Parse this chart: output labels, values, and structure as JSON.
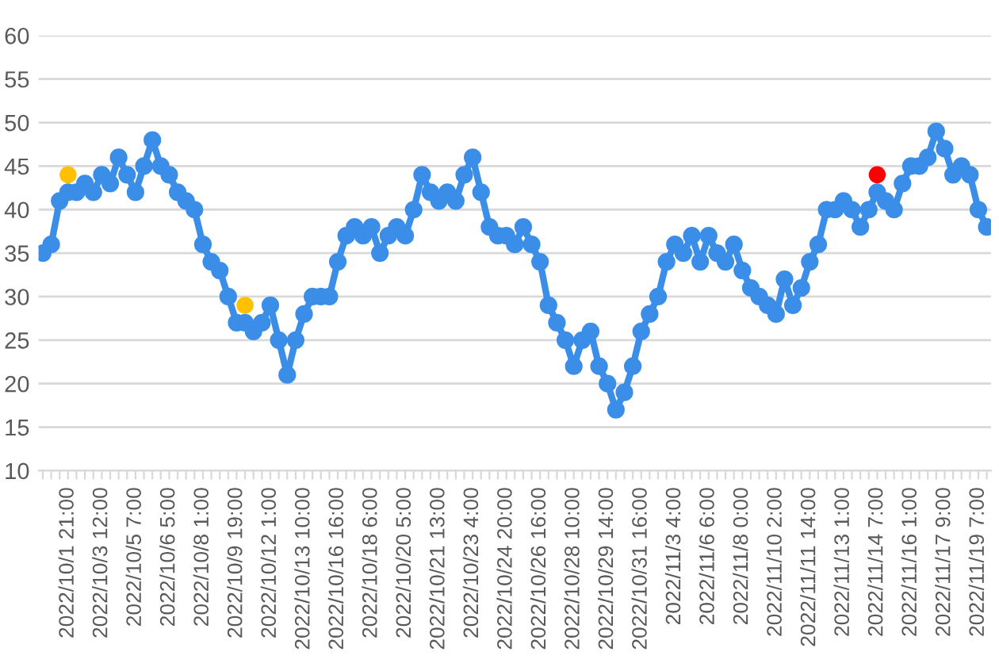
{
  "chart_data": {
    "type": "line",
    "categories": [
      null,
      null,
      null,
      "2022/10/1 21:00",
      null,
      null,
      null,
      "2022/10/3 12:00",
      null,
      null,
      null,
      "2022/10/5 7:00",
      null,
      null,
      null,
      "2022/10/6 5:00",
      null,
      null,
      null,
      "2022/10/8 1:00",
      null,
      null,
      null,
      "2022/10/9 19:00",
      null,
      null,
      null,
      "2022/10/12 1:00",
      null,
      null,
      null,
      "2022/10/13 10:00",
      null,
      null,
      null,
      "2022/10/16 16:00",
      null,
      null,
      null,
      "2022/10/18 6:00",
      null,
      null,
      null,
      "2022/10/20 5:00",
      null,
      null,
      null,
      "2022/10/21 13:00",
      null,
      null,
      null,
      "2022/10/23 4:00",
      null,
      null,
      null,
      "2022/10/24 20:00",
      null,
      null,
      null,
      "2022/10/26 16:00",
      null,
      null,
      null,
      "2022/10/28 10:00",
      null,
      null,
      null,
      "2022/10/29 14:00",
      null,
      null,
      null,
      "2022/10/31 16:00",
      null,
      null,
      null,
      "2022/11/3 4:00",
      null,
      null,
      null,
      "2022/11/6 6:00",
      null,
      null,
      null,
      "2022/11/8 0:00",
      null,
      null,
      null,
      "2022/11/10 2:00",
      null,
      null,
      null,
      "2022/11/11 14:00",
      null,
      null,
      null,
      "2022/11/13 1:00",
      null,
      null,
      null,
      "2022/11/14 7:00",
      null,
      null,
      null,
      "2022/11/16 1:00",
      null,
      null,
      null,
      "2022/11/17 9:00",
      null,
      null,
      null,
      "2022/11/19 7:00",
      null
    ],
    "series": [
      {
        "type": "line",
        "color": "#3b8ee8",
        "values": [
          35,
          36,
          41,
          42,
          42,
          43,
          42,
          44,
          43,
          46,
          44,
          42,
          45,
          48,
          45,
          44,
          42,
          41,
          40,
          36,
          34,
          33,
          30,
          27,
          27,
          26,
          27,
          29,
          25,
          21,
          25,
          28,
          30,
          30,
          30,
          34,
          37,
          38,
          37,
          38,
          35,
          37,
          38,
          37,
          40,
          44,
          42,
          41,
          42,
          41,
          44,
          46,
          42,
          38,
          37,
          37,
          36,
          38,
          36,
          34,
          29,
          27,
          25,
          22,
          25,
          26,
          22,
          20,
          17,
          19,
          22,
          26,
          28,
          30,
          34,
          36,
          35,
          37,
          34,
          37,
          35,
          34,
          36,
          33,
          31,
          30,
          29,
          28,
          32,
          29,
          31,
          34,
          36,
          40,
          40,
          41,
          40,
          38,
          40,
          42,
          41,
          40,
          43,
          45,
          45,
          46,
          49,
          47,
          44,
          45,
          44,
          40,
          38
        ]
      },
      {
        "type": "scatter",
        "colors": [
          null,
          null,
          null,
          "#ffc000",
          null,
          null,
          null,
          null,
          null,
          null,
          null,
          null,
          null,
          null,
          null,
          null,
          null,
          null,
          null,
          null,
          null,
          null,
          null,
          null,
          "#ffc000",
          null,
          null,
          null,
          null,
          null,
          null,
          null,
          null,
          null,
          null,
          null,
          null,
          null,
          null,
          null,
          null,
          null,
          null,
          null,
          null,
          null,
          null,
          null,
          null,
          null,
          null,
          null,
          null,
          null,
          null,
          null,
          null,
          null,
          null,
          null,
          null,
          null,
          null,
          null,
          null,
          null,
          null,
          null,
          null,
          null,
          null,
          null,
          null,
          null,
          null,
          null,
          null,
          null,
          null,
          null,
          null,
          null,
          null,
          null,
          null,
          null,
          null,
          null,
          null,
          null,
          null,
          null,
          null,
          null,
          null,
          null,
          null,
          null,
          null,
          "#ff0000",
          null,
          null,
          null,
          null,
          null,
          null,
          null,
          null,
          null,
          null,
          null,
          null,
          null
        ],
        "values": [
          null,
          null,
          null,
          44,
          null,
          null,
          null,
          null,
          null,
          null,
          null,
          null,
          null,
          null,
          null,
          null,
          null,
          null,
          null,
          null,
          null,
          null,
          null,
          null,
          29,
          null,
          null,
          null,
          null,
          null,
          null,
          null,
          null,
          null,
          null,
          null,
          null,
          null,
          null,
          null,
          null,
          null,
          null,
          null,
          null,
          null,
          null,
          null,
          null,
          null,
          null,
          null,
          null,
          null,
          null,
          null,
          null,
          null,
          null,
          null,
          null,
          null,
          null,
          null,
          null,
          null,
          null,
          null,
          null,
          null,
          null,
          null,
          null,
          null,
          null,
          null,
          null,
          null,
          null,
          null,
          null,
          null,
          null,
          null,
          null,
          null,
          null,
          null,
          null,
          null,
          null,
          null,
          null,
          null,
          null,
          null,
          null,
          null,
          null,
          44,
          null,
          null,
          null,
          null,
          null,
          null,
          null,
          null,
          null,
          null,
          null,
          null,
          null
        ]
      }
    ],
    "ylim": [
      10,
      60
    ],
    "yticks": [
      10,
      15,
      20,
      25,
      30,
      35,
      40,
      45,
      50,
      55,
      60
    ],
    "grid": "y",
    "marker": "circle",
    "line_style": "solid"
  }
}
